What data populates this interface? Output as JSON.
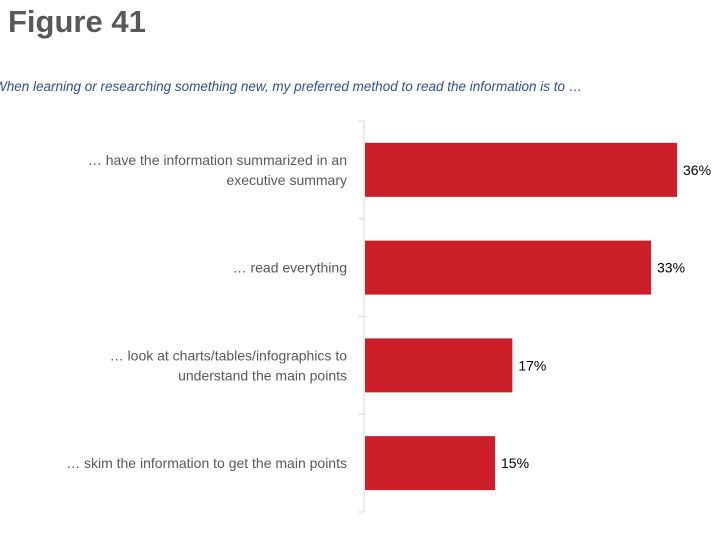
{
  "figure_label": "Figure 41",
  "chart_data": {
    "type": "bar",
    "orientation": "horizontal",
    "title": "",
    "subtitle": "When learning or researching something new, my preferred method to read the information is to …",
    "categories": [
      [
        "… have the information summarized in an",
        "executive summary"
      ],
      [
        "… read everything"
      ],
      [
        "… look at charts/tables/infographics to",
        "understand the main points"
      ],
      [
        "… skim the information to get the main points"
      ]
    ],
    "values": [
      36,
      33,
      17,
      15
    ],
    "data_labels": [
      "36%",
      "33%",
      "17%",
      "15%"
    ],
    "xlim": [
      0,
      40
    ],
    "grid": false,
    "bar_color": "#cc1f2a"
  }
}
